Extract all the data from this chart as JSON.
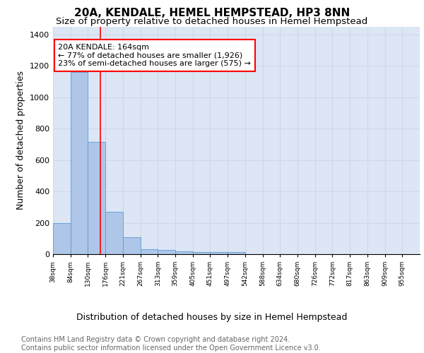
{
  "title1": "20A, KENDALE, HEMEL HEMPSTEAD, HP3 8NN",
  "title2": "Size of property relative to detached houses in Hemel Hempstead",
  "xlabel": "Distribution of detached houses by size in Hemel Hempstead",
  "ylabel": "Number of detached properties",
  "bar_values": [
    196,
    1160,
    714,
    270,
    107,
    32,
    28,
    18,
    13,
    14,
    14,
    0,
    0,
    0,
    0,
    0,
    0,
    0,
    0,
    0,
    0
  ],
  "categories": [
    "38sqm",
    "84sqm",
    "130sqm",
    "176sqm",
    "221sqm",
    "267sqm",
    "313sqm",
    "359sqm",
    "405sqm",
    "451sqm",
    "497sqm",
    "542sqm",
    "588sqm",
    "634sqm",
    "680sqm",
    "726sqm",
    "772sqm",
    "817sqm",
    "863sqm",
    "909sqm",
    "955sqm"
  ],
  "bar_color": "#aec6e8",
  "bar_edge_color": "#5b9bd5",
  "grid_color": "#d0d8e8",
  "background_color": "#dce6f5",
  "red_line_x": 2.72,
  "annotation_text": "20A KENDALE: 164sqm\n← 77% of detached houses are smaller (1,926)\n23% of semi-detached houses are larger (575) →",
  "annotation_box_color": "white",
  "annotation_edge_color": "red",
  "ylim": [
    0,
    1450
  ],
  "yticks": [
    0,
    200,
    400,
    600,
    800,
    1000,
    1200,
    1400
  ],
  "footer_text": "Contains HM Land Registry data © Crown copyright and database right 2024.\nContains public sector information licensed under the Open Government Licence v3.0.",
  "title1_fontsize": 11,
  "title2_fontsize": 9.5,
  "xlabel_fontsize": 9,
  "ylabel_fontsize": 9,
  "footer_fontsize": 7,
  "ann_fontsize": 8
}
